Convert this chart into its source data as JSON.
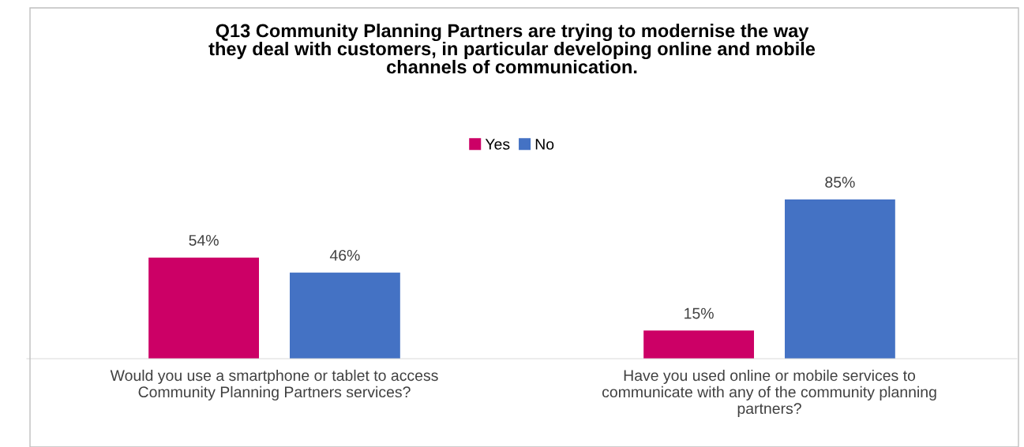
{
  "chart_data": {
    "type": "bar",
    "title": "Q13 Community Planning Partners are trying to modernise the way\nthey deal with customers, in particular developing online and mobile\nchannels of communication.",
    "categories": [
      "Would you use a smartphone or tablet to access\nCommunity Planning Partners services?",
      "Have you used online or mobile services to\ncommunicate with any of the community planning\npartners?"
    ],
    "series": [
      {
        "name": "Yes",
        "color": "#cc0066",
        "values": [
          54,
          15
        ],
        "value_labels": [
          "54%",
          "15%"
        ]
      },
      {
        "name": "No",
        "color": "#4472c4",
        "values": [
          46,
          85
        ],
        "value_labels": [
          "46%",
          "85%"
        ]
      }
    ],
    "legend": "top",
    "grid": false
  }
}
